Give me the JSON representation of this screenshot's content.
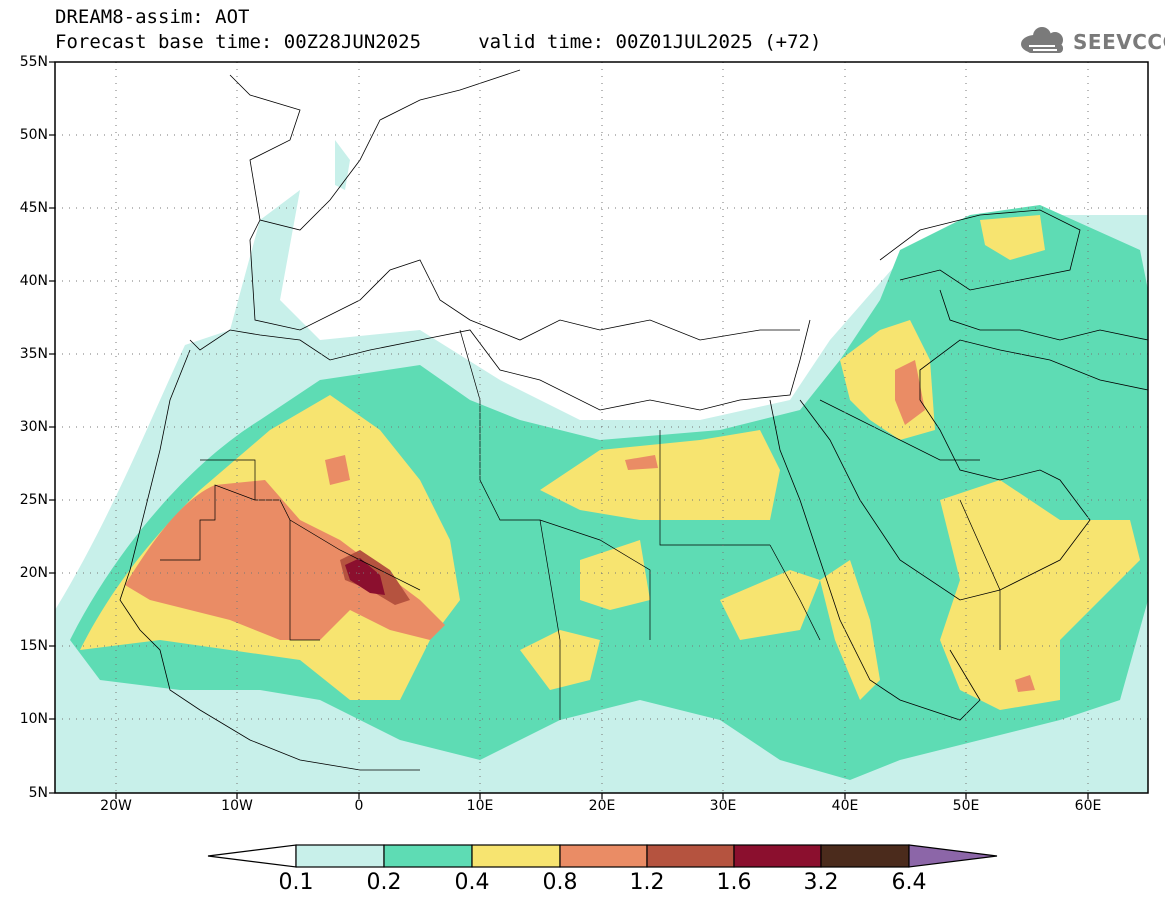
{
  "header": {
    "line1": "DREAM8-assim: AOT",
    "line2": "Forecast base time: 00Z28JUN2025     valid time: 00Z01JUL2025 (+72)"
  },
  "logo": {
    "text": "SEEVCCC",
    "icon": "cloud-logo-icon"
  },
  "map": {
    "lon_range": [
      -25,
      65
    ],
    "lat_range": [
      5,
      55
    ],
    "lat_labels": [
      "55N",
      "50N",
      "45N",
      "40N",
      "35N",
      "30N",
      "25N",
      "20N",
      "15N",
      "10N",
      "5N"
    ],
    "lon_labels": [
      "20W",
      "10W",
      "0",
      "10E",
      "20E",
      "30E",
      "40E",
      "50E",
      "60E"
    ]
  },
  "legend": {
    "thresholds": [
      "0.1",
      "0.2",
      "0.4",
      "0.8",
      "1.2",
      "1.6",
      "3.2",
      "6.4"
    ],
    "colors": [
      "#ffffff",
      "#c8f0ea",
      "#5edcb4",
      "#f7e470",
      "#ea8c65",
      "#b5533f",
      "#8b0f2e",
      "#4b2b1c",
      "#8c66a8"
    ]
  }
}
